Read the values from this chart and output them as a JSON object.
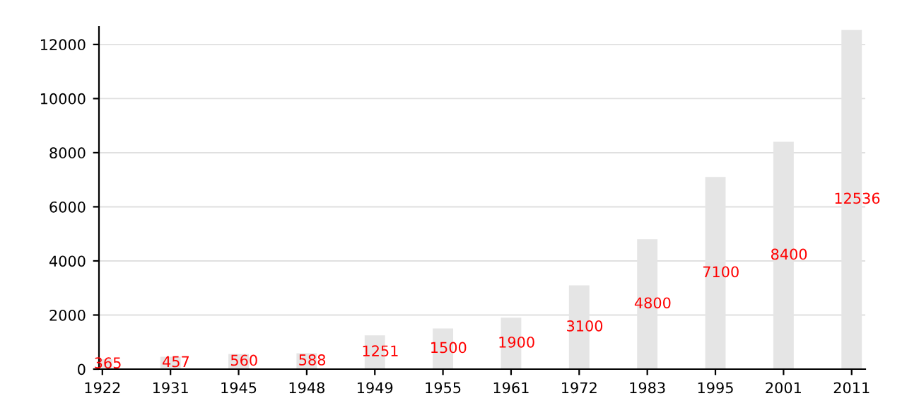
{
  "chart_data": {
    "type": "bar",
    "categories": [
      "1922",
      "1931",
      "1945",
      "1948",
      "1949",
      "1955",
      "1961",
      "1972",
      "1983",
      "1995",
      "2001",
      "2011"
    ],
    "values": [
      365,
      457,
      560,
      588,
      1251,
      1500,
      1900,
      3100,
      4800,
      7100,
      8400,
      12536
    ],
    "color": "#e5e5e5",
    "ylim": [
      0,
      12650
    ],
    "yticks": [
      0,
      2000,
      4000,
      6000,
      8000,
      10000,
      12000
    ],
    "grid": "y",
    "data_labels": true
  }
}
